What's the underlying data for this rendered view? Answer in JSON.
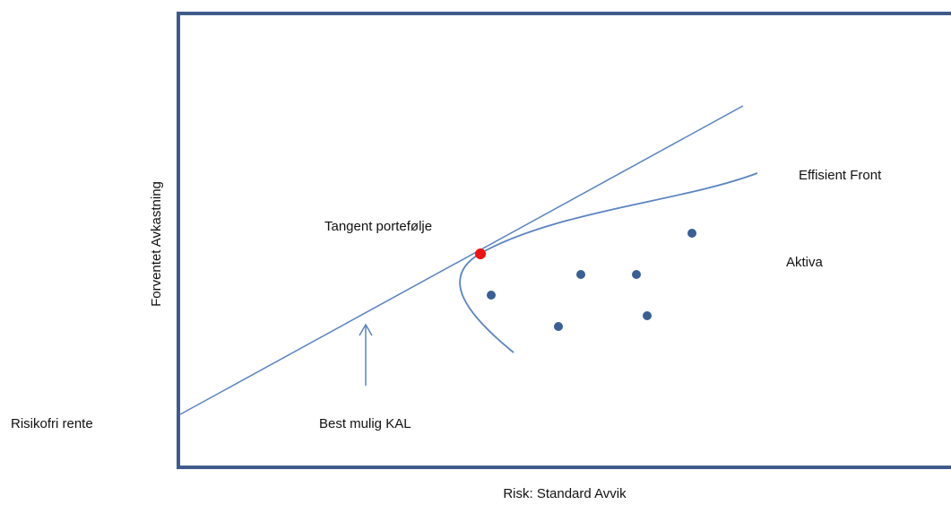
{
  "axes": {
    "y_label": "Forventet Avkastning",
    "x_label": "Risk: Standard Avvik"
  },
  "labels": {
    "risk_free": "Risikofri rente",
    "best_cal": "Best mulig KAL",
    "tangent": "Tangent portefølje",
    "frontier": "Effisient Front",
    "assets": "Aktiva"
  }
}
